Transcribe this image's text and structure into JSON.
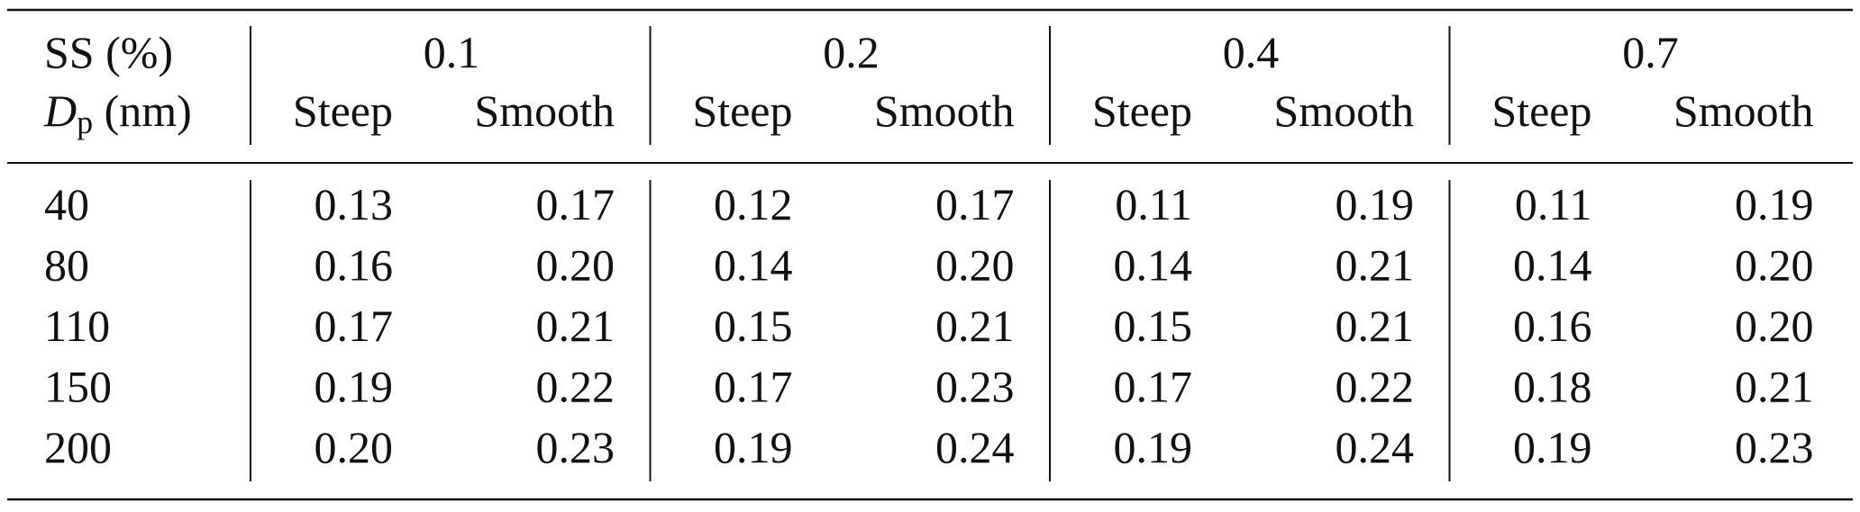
{
  "header": {
    "row_label_1": "SS (%)",
    "row_label_2": {
      "main": "D",
      "sub": "p",
      "rest": " (nm)"
    },
    "groups": [
      {
        "ss": "0.1",
        "columns": [
          "Steep",
          "Smooth"
        ]
      },
      {
        "ss": "0.2",
        "columns": [
          "Steep",
          "Smooth"
        ]
      },
      {
        "ss": "0.4",
        "columns": [
          "Steep",
          "Smooth"
        ]
      },
      {
        "ss": "0.7",
        "columns": [
          "Steep",
          "Smooth"
        ]
      }
    ]
  },
  "table": {
    "rows": [
      [
        "40",
        "0.13",
        "0.17",
        "0.12",
        "0.17",
        "0.11",
        "0.19",
        "0.11",
        "0.19"
      ],
      [
        "80",
        "0.16",
        "0.20",
        "0.14",
        "0.20",
        "0.14",
        "0.21",
        "0.14",
        "0.20"
      ],
      [
        "110",
        "0.17",
        "0.21",
        "0.15",
        "0.21",
        "0.15",
        "0.21",
        "0.16",
        "0.20"
      ],
      [
        "150",
        "0.19",
        "0.22",
        "0.17",
        "0.23",
        "0.17",
        "0.22",
        "0.18",
        "0.21"
      ],
      [
        "200",
        "0.20",
        "0.23",
        "0.19",
        "0.24",
        "0.19",
        "0.24",
        "0.19",
        "0.23"
      ]
    ]
  }
}
